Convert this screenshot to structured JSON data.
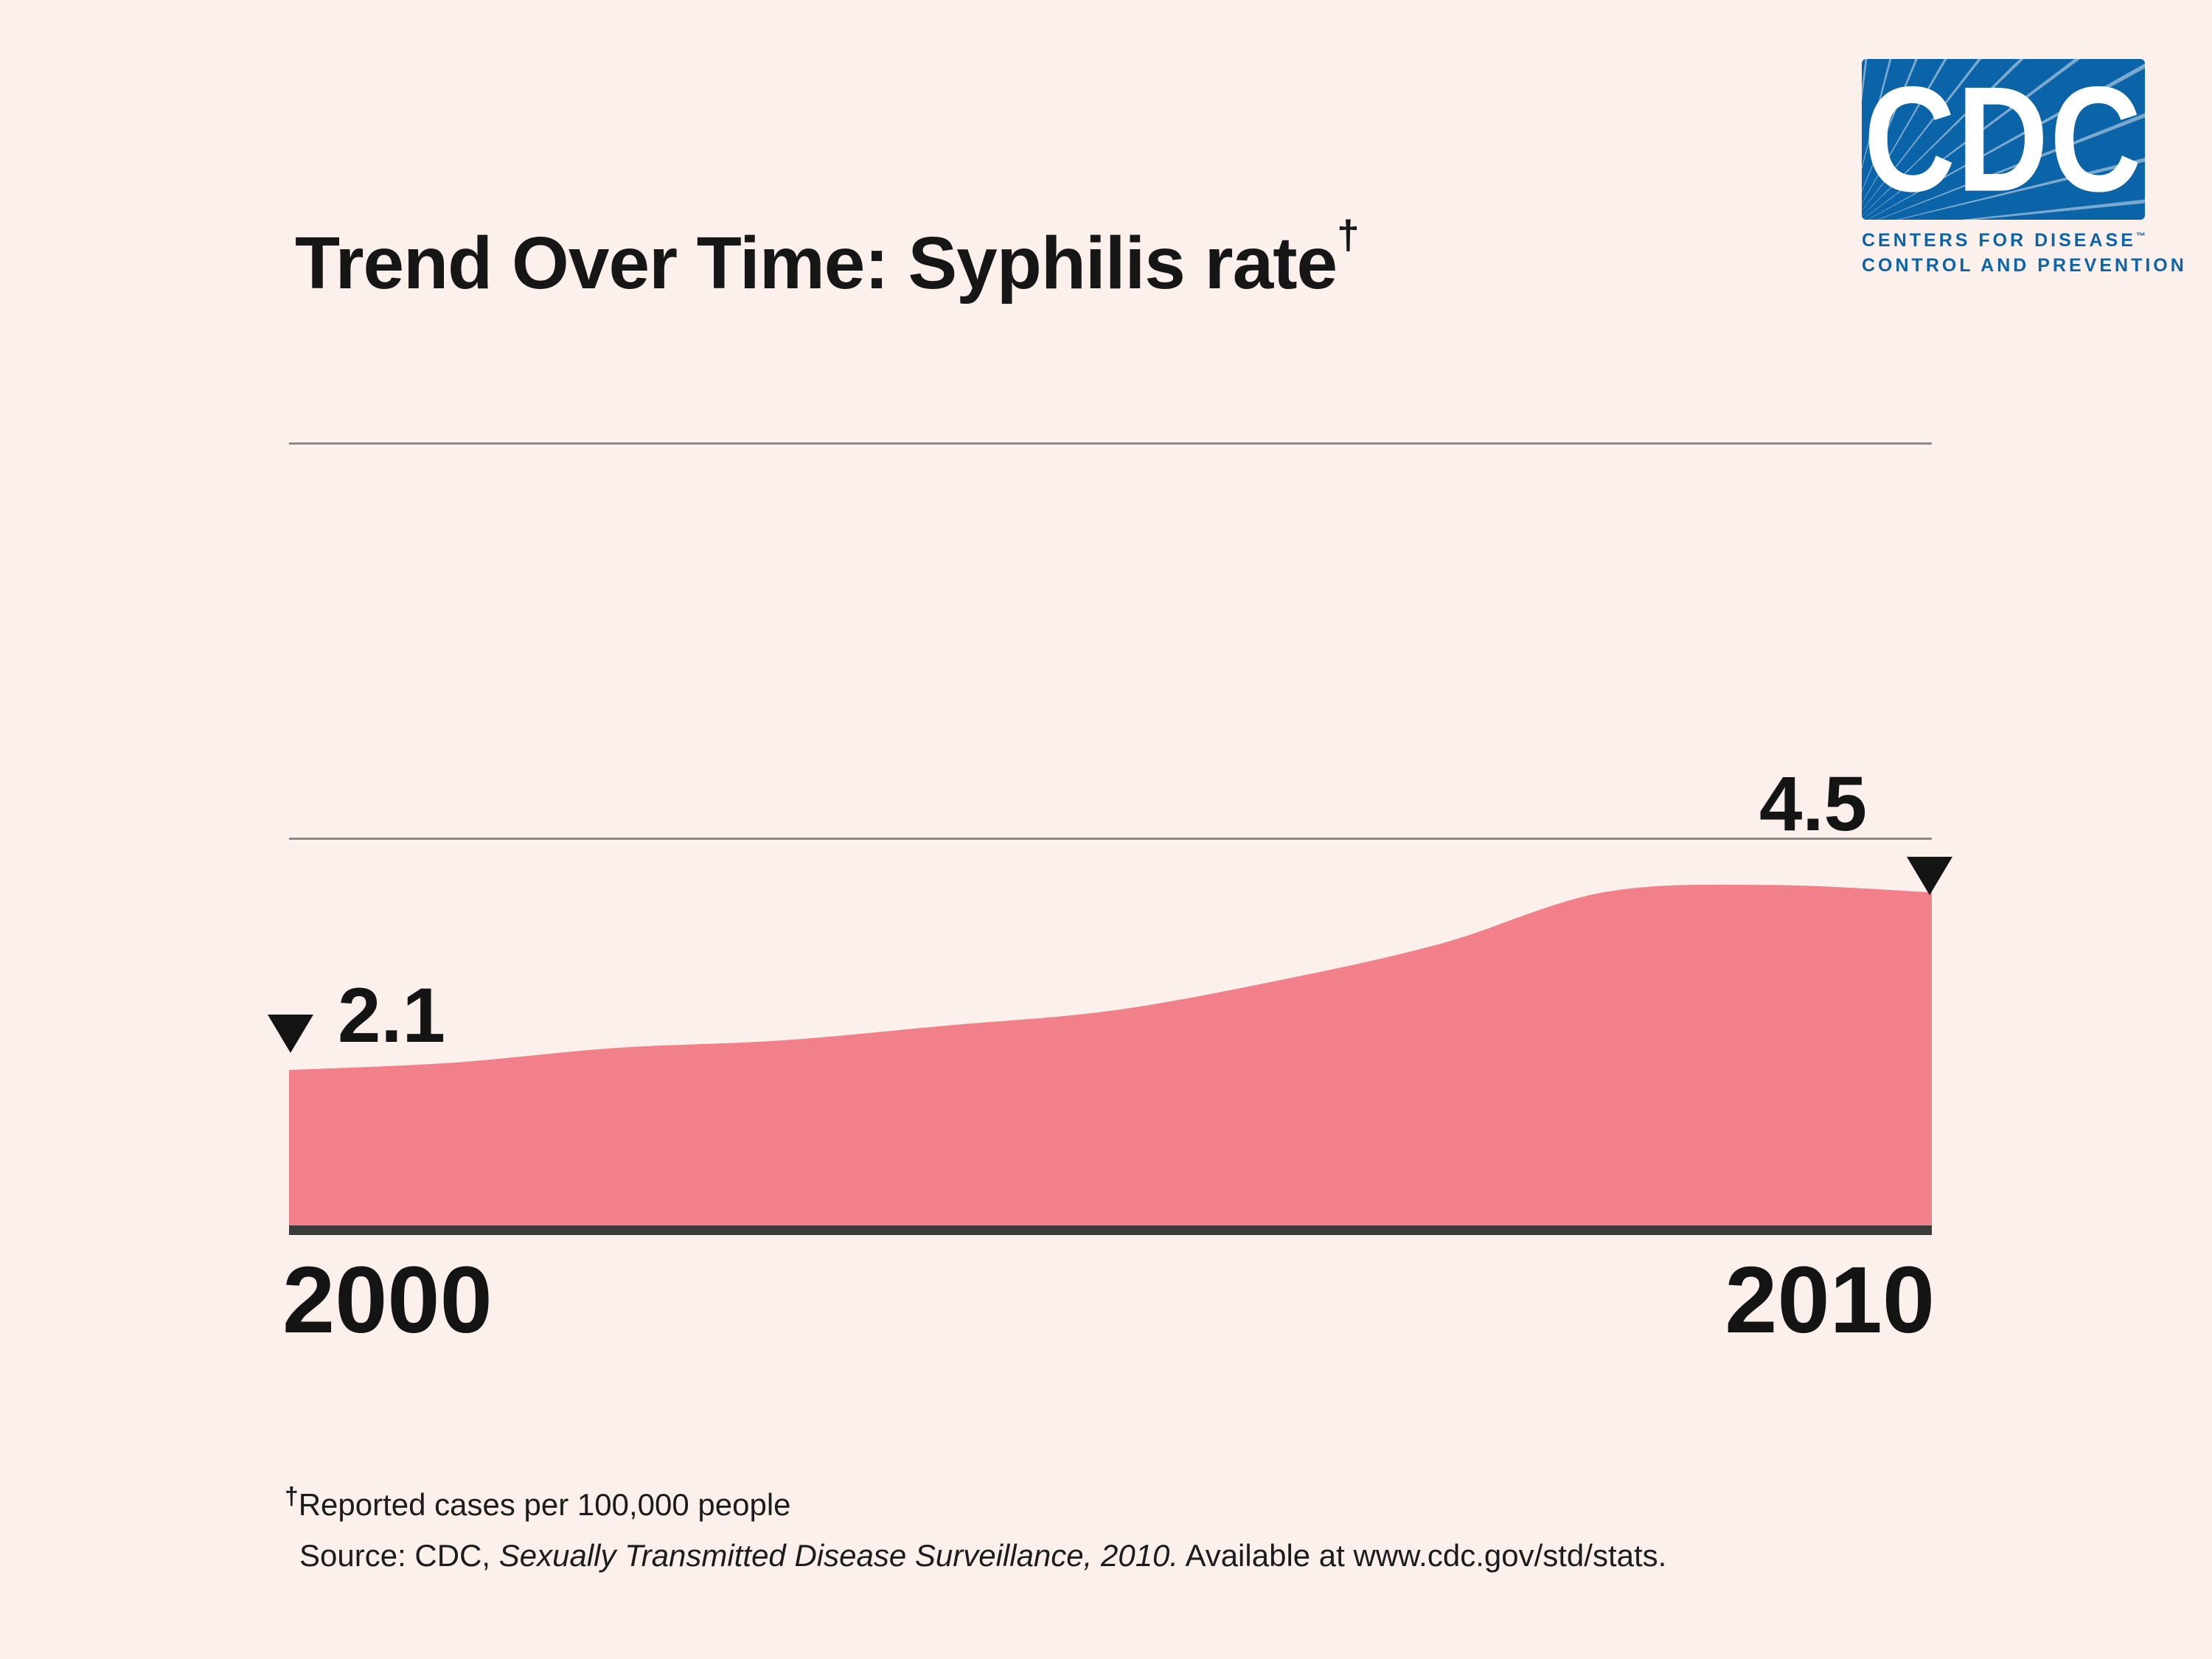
{
  "page": {
    "background": "#FBF0EB",
    "title_prefix": "Trend Over Time: ",
    "title_rest": "Syphilis rate",
    "title_dagger": "†"
  },
  "logo": {
    "acronym": "CDC",
    "line1": "CENTERS FOR DISEASE",
    "trademark": "™",
    "line2": "CONTROL AND PREVENTION",
    "blue": "#0B63A8"
  },
  "chart_data": {
    "type": "area",
    "title": "Trend Over Time: Syphilis rate†",
    "x": [
      2000,
      2001,
      2002,
      2003,
      2004,
      2005,
      2006,
      2007,
      2008,
      2009,
      2010
    ],
    "values": [
      2.1,
      2.2,
      2.4,
      2.5,
      2.7,
      2.9,
      3.3,
      3.8,
      4.5,
      4.6,
      4.5
    ],
    "xlabel": "",
    "ylabel": "Reported cases per 100,000 people",
    "ylim": [
      0,
      5.2
    ],
    "x_tick_labels": [
      "2000",
      "2010"
    ],
    "start_value_label": "2.1",
    "end_value_label": "4.5",
    "grid": "two horizontal gridlines, no y-axis tick labels",
    "legend": "none",
    "area_color": "#F2808A",
    "baseline_color": "#3B3B3B",
    "gridline_color": "#8D8986"
  },
  "labels": {
    "start_value": "2.1",
    "end_value": "4.5",
    "x_start": "2000",
    "x_end": "2010"
  },
  "footnotes": {
    "dagger": "†",
    "note": "Reported cases per 100,000 people",
    "source_prefix": "Source:  CDC, ",
    "source_italic": "Sexually Transmitted Disease Surveillance, 2010.",
    "source_suffix": "  Available at www.cdc.gov/std/stats."
  }
}
